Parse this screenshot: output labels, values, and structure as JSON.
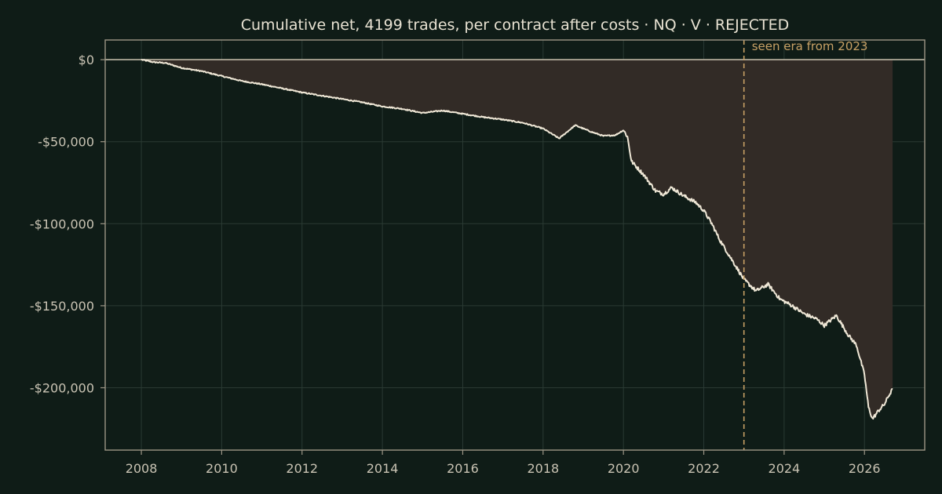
{
  "chart_data": {
    "type": "area",
    "title": "Cumulative net, 4199 trades, per contract after costs  ·  NQ · V · REJECTED",
    "xlabel": "",
    "ylabel": "",
    "xlim": [
      2007.1,
      2027.5
    ],
    "ylim": [
      -238000,
      12000
    ],
    "x_ticks": [
      2008,
      2010,
      2012,
      2014,
      2016,
      2018,
      2020,
      2022,
      2024,
      2026
    ],
    "x_tick_labels": [
      "2008",
      "2010",
      "2012",
      "2014",
      "2016",
      "2018",
      "2020",
      "2022",
      "2024",
      "2026"
    ],
    "y_ticks": [
      0,
      -50000,
      -100000,
      -150000,
      -200000
    ],
    "y_tick_labels": [
      "$0",
      "-$50,000",
      "-$100,000",
      "-$150,000",
      "-$200,000"
    ],
    "grid": true,
    "series": [
      {
        "values": [
          [
            2008.0,
            0
          ],
          [
            2008.3,
            -1500
          ],
          [
            2008.6,
            -2000
          ],
          [
            2009.0,
            -5000
          ],
          [
            2009.5,
            -7000
          ],
          [
            2010.0,
            -10000
          ],
          [
            2010.5,
            -13000
          ],
          [
            2011.0,
            -15000
          ],
          [
            2011.5,
            -17500
          ],
          [
            2011.8,
            -19000
          ],
          [
            2012.0,
            -20000
          ],
          [
            2012.5,
            -22000
          ],
          [
            2013.0,
            -24000
          ],
          [
            2013.5,
            -26000
          ],
          [
            2014.0,
            -28500
          ],
          [
            2014.5,
            -30000
          ],
          [
            2015.0,
            -32500
          ],
          [
            2015.5,
            -31000
          ],
          [
            2016.0,
            -33000
          ],
          [
            2016.5,
            -35000
          ],
          [
            2017.0,
            -36500
          ],
          [
            2017.5,
            -38500
          ],
          [
            2018.0,
            -42000
          ],
          [
            2018.2,
            -45000
          ],
          [
            2018.4,
            -48000
          ],
          [
            2018.6,
            -44000
          ],
          [
            2018.8,
            -40000
          ],
          [
            2019.0,
            -42000
          ],
          [
            2019.2,
            -44000
          ],
          [
            2019.5,
            -46500
          ],
          [
            2019.8,
            -46000
          ],
          [
            2020.0,
            -43000
          ],
          [
            2020.1,
            -47000
          ],
          [
            2020.2,
            -62000
          ],
          [
            2020.5,
            -70000
          ],
          [
            2020.8,
            -80000
          ],
          [
            2021.0,
            -82000
          ],
          [
            2021.2,
            -78000
          ],
          [
            2021.5,
            -83000
          ],
          [
            2021.8,
            -87000
          ],
          [
            2022.0,
            -92000
          ],
          [
            2022.2,
            -100000
          ],
          [
            2022.4,
            -110000
          ],
          [
            2022.6,
            -118000
          ],
          [
            2022.8,
            -126000
          ],
          [
            2023.0,
            -134000
          ],
          [
            2023.3,
            -141000
          ],
          [
            2023.6,
            -137000
          ],
          [
            2023.9,
            -146000
          ],
          [
            2024.2,
            -150000
          ],
          [
            2024.5,
            -155000
          ],
          [
            2024.8,
            -158000
          ],
          [
            2025.0,
            -162000
          ],
          [
            2025.3,
            -156000
          ],
          [
            2025.6,
            -168000
          ],
          [
            2025.8,
            -174000
          ],
          [
            2026.0,
            -192000
          ],
          [
            2026.1,
            -212000
          ],
          [
            2026.2,
            -219000
          ],
          [
            2026.35,
            -214000
          ],
          [
            2026.5,
            -210000
          ],
          [
            2026.6,
            -205000
          ],
          [
            2026.7,
            -201000
          ]
        ]
      }
    ],
    "annotations": [
      {
        "type": "vline",
        "x": 2023.0,
        "text": "seen era from 2023"
      }
    ]
  },
  "colors": {
    "background": "#0f1c17",
    "line": "#efe7d6",
    "fill": "#322b26",
    "grid": "#2a3a33",
    "axis": "#9c9686",
    "zero_line": "#bdb6a4",
    "annotation": "#c8a165"
  }
}
